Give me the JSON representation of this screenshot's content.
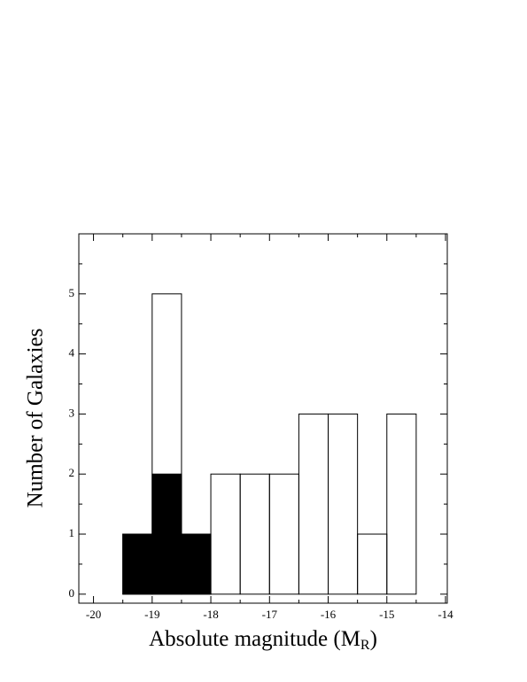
{
  "chart_data": {
    "type": "histogram",
    "x_label": [
      "Absolute magnitude (M",
      "R",
      ")"
    ],
    "y_label": "Number of Galaxies",
    "bins": [
      -20,
      -19.5,
      -19,
      -18.5,
      -18,
      -17.5,
      -17,
      -16.5,
      -16,
      -15.5,
      -15,
      -14.5,
      -14
    ],
    "series": [
      {
        "color": "#000000",
        "filled": false,
        "values": [
          0,
          1,
          5,
          1,
          2,
          2,
          2,
          3,
          3,
          1,
          3,
          0
        ]
      },
      {
        "color": "#000000",
        "filled": true,
        "values": [
          0,
          1,
          2,
          1,
          0,
          0,
          0,
          0,
          0,
          0,
          0,
          0
        ]
      }
    ],
    "xlim": [
      -20.25,
      -13.97
    ],
    "ylim": [
      -0.15,
      6
    ],
    "xticks": [
      -20,
      -19,
      -18,
      -17,
      -16,
      -15,
      -14
    ],
    "xminorticks": [
      -19.5,
      -18.5,
      -17.5,
      -16.5,
      -15.5,
      -14.5
    ],
    "yticks": [
      0,
      1,
      2,
      3,
      4,
      5
    ],
    "yminorticks": [
      0.5,
      1.5,
      2.5,
      3.5,
      4.5,
      5.5
    ]
  }
}
